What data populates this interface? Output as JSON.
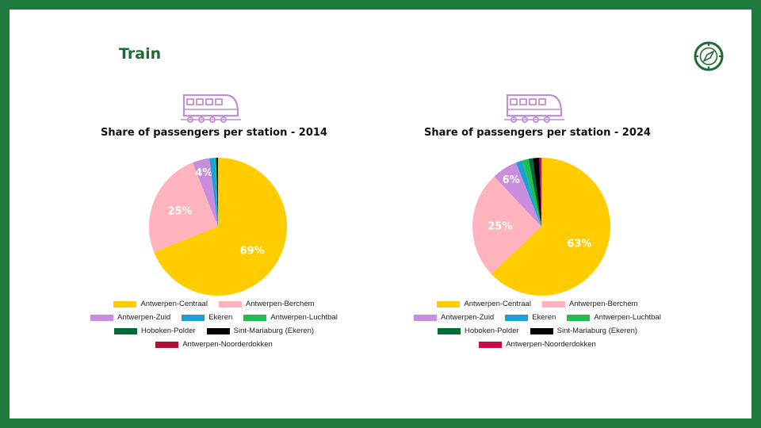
{
  "header": {
    "title": "Train",
    "compass_icon": "compass-icon"
  },
  "chart_data": [
    {
      "type": "pie",
      "title": "Share of passengers per station - 2014",
      "slices": [
        {
          "label": "Antwerpen-Centraal",
          "value": 69,
          "data_label": "69%",
          "color": "#ffcc00"
        },
        {
          "label": "Antwerpen-Berchem",
          "value": 25,
          "data_label": "25%",
          "color": "#ffb3bd"
        },
        {
          "label": "Antwerpen-Zuid",
          "value": 4,
          "data_label": "4%",
          "color": "#c88ddc"
        },
        {
          "label": "Ekeren",
          "value": 1.2,
          "data_label": "",
          "color": "#1a9fd9"
        },
        {
          "label": "Antwerpen-Luchtbal",
          "value": 0.3,
          "data_label": "",
          "color": "#1fbf4f"
        },
        {
          "label": "Hoboken-Polder",
          "value": 0.2,
          "data_label": "",
          "color": "#006b33"
        },
        {
          "label": "Sint-Mariaburg (Ekeren)",
          "value": 0.3,
          "data_label": "",
          "color": "#000000"
        },
        {
          "label": "Antwerpen-Noorderdokken",
          "value": 0,
          "data_label": "",
          "color": "#b0103a"
        }
      ]
    },
    {
      "type": "pie",
      "title": "Share of passengers per station - 2024",
      "slices": [
        {
          "label": "Antwerpen-Centraal",
          "value": 63,
          "data_label": "63%",
          "color": "#ffcc00"
        },
        {
          "label": "Antwerpen-Berchem",
          "value": 25,
          "data_label": "25%",
          "color": "#ffb3bd"
        },
        {
          "label": "Antwerpen-Zuid",
          "value": 6,
          "data_label": "6%",
          "color": "#c88ddc"
        },
        {
          "label": "Ekeren",
          "value": 1.5,
          "data_label": "",
          "color": "#1a9fd9"
        },
        {
          "label": "Antwerpen-Luchtbal",
          "value": 1.5,
          "data_label": "",
          "color": "#1fbf4f"
        },
        {
          "label": "Hoboken-Polder",
          "value": 1,
          "data_label": "",
          "color": "#006b33"
        },
        {
          "label": "Sint-Mariaburg (Ekeren)",
          "value": 1.5,
          "data_label": "",
          "color": "#000000"
        },
        {
          "label": "Antwerpen-Noorderdokken",
          "value": 0.5,
          "data_label": "",
          "color": "#cc0a45"
        }
      ]
    }
  ],
  "legend_rows": [
    [
      "Antwerpen-Centraal",
      "Antwerpen-Berchem"
    ],
    [
      "Antwerpen-Zuid",
      "Ekeren",
      "Antwerpen-Luchtbal"
    ],
    [
      "Hoboken-Polder",
      "Sint-Mariaburg (Ekeren)"
    ],
    [
      "Antwerpen-Noorderdokken"
    ]
  ],
  "train_icon": "train-icon"
}
